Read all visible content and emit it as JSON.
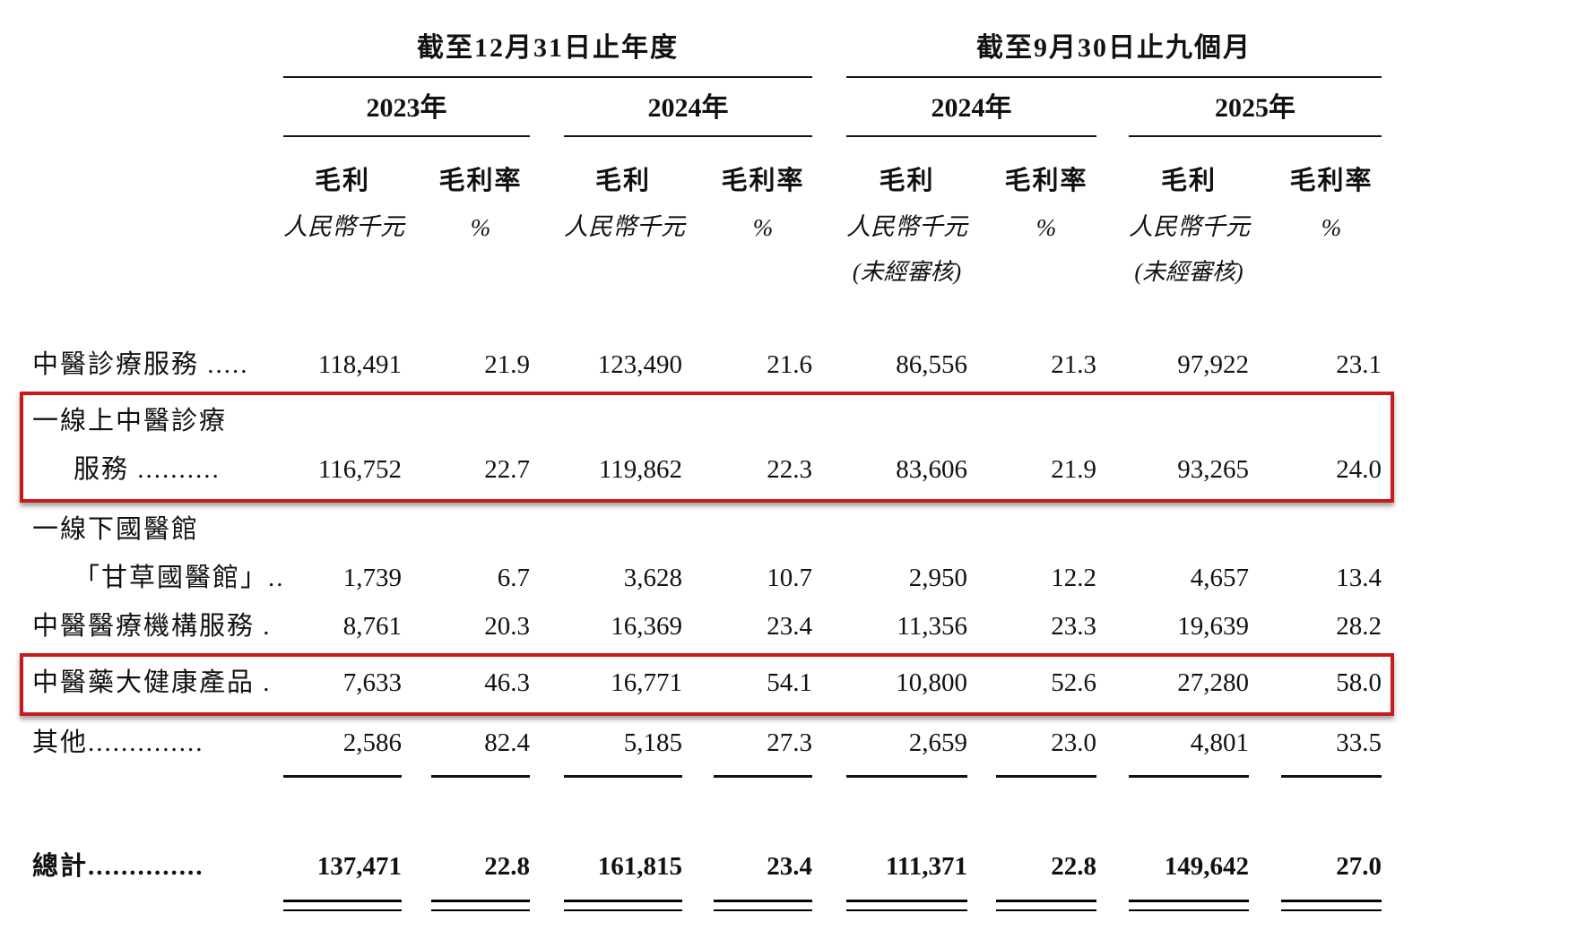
{
  "periods": [
    {
      "title": "截至12月31日止年度",
      "years": [
        {
          "year": "2023年",
          "gp": "毛利",
          "gpm": "毛利率",
          "unit": "人民幣千元",
          "pct": "%",
          "note": ""
        },
        {
          "year": "2024年",
          "gp": "毛利",
          "gpm": "毛利率",
          "unit": "人民幣千元",
          "pct": "%",
          "note": ""
        }
      ]
    },
    {
      "title": "截至9月30日止九個月",
      "years": [
        {
          "year": "2024年",
          "gp": "毛利",
          "gpm": "毛利率",
          "unit": "人民幣千元",
          "pct": "%",
          "note": "(未經審核)"
        },
        {
          "year": "2025年",
          "gp": "毛利",
          "gpm": "毛利率",
          "unit": "人民幣千元",
          "pct": "%",
          "note": "(未經審核)"
        }
      ]
    }
  ],
  "rows": [
    {
      "l1": "中醫診療服務 .....",
      "l2": "",
      "v": [
        "118,491",
        "21.9",
        "123,490",
        "21.6",
        "86,556",
        "21.3",
        "97,922",
        "23.1"
      ]
    },
    {
      "l1": "一線上中醫診療",
      "l2": "服務 ..........",
      "v": [
        "116,752",
        "22.7",
        "119,862",
        "22.3",
        "83,606",
        "21.9",
        "93,265",
        "24.0"
      ]
    },
    {
      "l1": "一線下國醫館",
      "l2": "「甘草國醫館」..",
      "v": [
        "1,739",
        "6.7",
        "3,628",
        "10.7",
        "2,950",
        "12.2",
        "4,657",
        "13.4"
      ]
    },
    {
      "l1": "中醫醫療機構服務 .",
      "l2": "",
      "v": [
        "8,761",
        "20.3",
        "16,369",
        "23.4",
        "11,356",
        "23.3",
        "19,639",
        "28.2"
      ]
    },
    {
      "l1": "中醫藥大健康產品 .",
      "l2": "",
      "v": [
        "7,633",
        "46.3",
        "16,771",
        "54.1",
        "10,800",
        "52.6",
        "27,280",
        "58.0"
      ]
    },
    {
      "l1": "其他..............",
      "l2": "",
      "v": [
        "2,586",
        "82.4",
        "5,185",
        "27.3",
        "2,659",
        "23.0",
        "4,801",
        "33.5"
      ]
    }
  ],
  "total": {
    "label": "總計..............",
    "v": [
      "137,471",
      "22.8",
      "161,815",
      "23.4",
      "111,371",
      "22.8",
      "149,642",
      "27.0"
    ]
  },
  "highlight_color": "#c8191c"
}
